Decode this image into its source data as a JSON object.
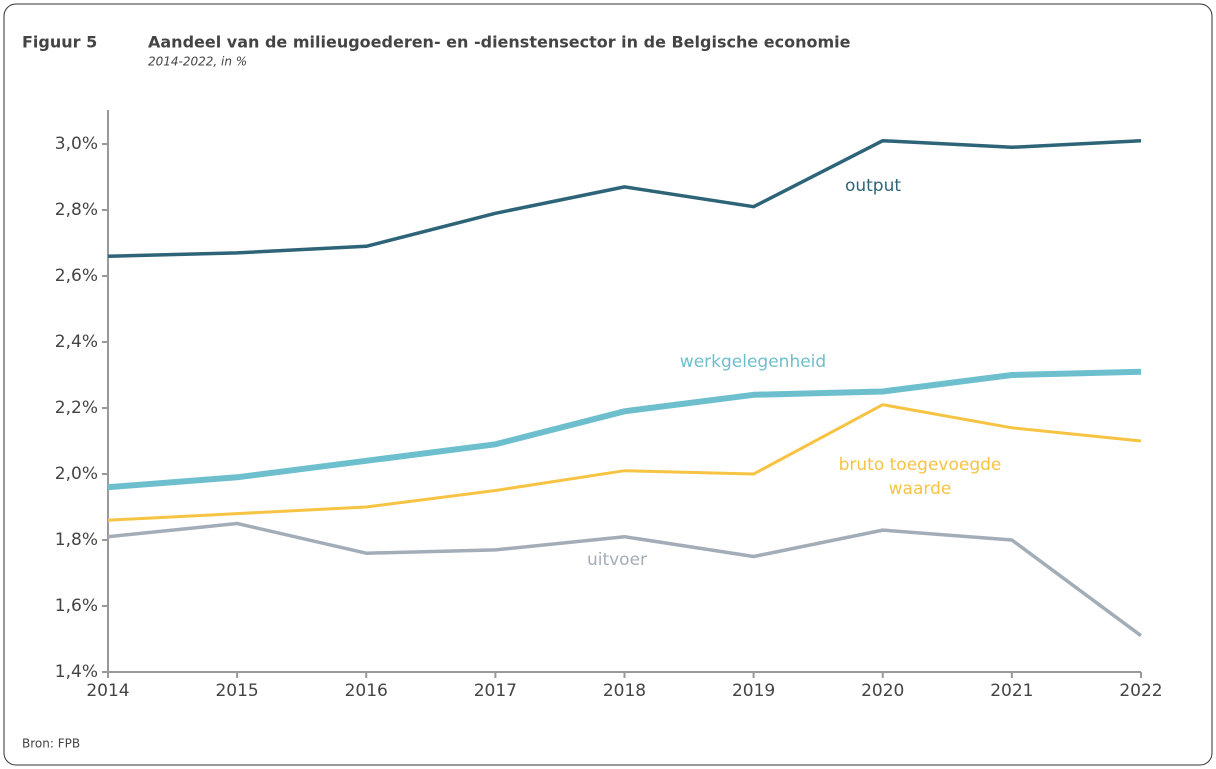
{
  "chart_data": {
    "type": "line",
    "figure_label": "Figuur 5",
    "title": "Aandeel van de milieugoederen- en -dienstensector in de Belgische economie",
    "subtitle": "2014-2022, in %",
    "source": "Bron: FPB",
    "categories": [
      "2014",
      "2015",
      "2016",
      "2017",
      "2018",
      "2019",
      "2020",
      "2021",
      "2022"
    ],
    "series": [
      {
        "name": "output",
        "color": "#2e6478",
        "values": [
          2.66,
          2.67,
          2.69,
          2.79,
          2.87,
          2.81,
          3.01,
          2.99,
          3.01
        ]
      },
      {
        "name": "werkgelegenheid",
        "color": "#6dbfcd",
        "values": [
          1.96,
          1.99,
          2.04,
          2.09,
          2.19,
          2.24,
          2.25,
          2.3,
          2.31
        ]
      },
      {
        "name": "bruto toegevoegde waarde",
        "color": "#f6c343",
        "values": [
          1.86,
          1.88,
          1.9,
          1.95,
          2.01,
          2.0,
          2.21,
          2.14,
          2.1
        ]
      },
      {
        "name": "uitvoer",
        "color": "#a3adb8",
        "values": [
          1.81,
          1.85,
          1.76,
          1.77,
          1.81,
          1.75,
          1.83,
          1.8,
          1.51
        ]
      }
    ],
    "ylim": [
      1.4,
      3.0
    ],
    "yticks": [
      {
        "value": 1.4,
        "label": "1,4%"
      },
      {
        "value": 1.6,
        "label": "1,6%"
      },
      {
        "value": 1.8,
        "label": "1,8%"
      },
      {
        "value": 2.0,
        "label": "2,0%"
      },
      {
        "value": 2.2,
        "label": "2,2%"
      },
      {
        "value": 2.4,
        "label": "2,4%"
      },
      {
        "value": 2.6,
        "label": "2,6%"
      },
      {
        "value": 2.8,
        "label": "2,8%"
      },
      {
        "value": 3.0,
        "label": "3,0%"
      }
    ],
    "grid": false
  }
}
